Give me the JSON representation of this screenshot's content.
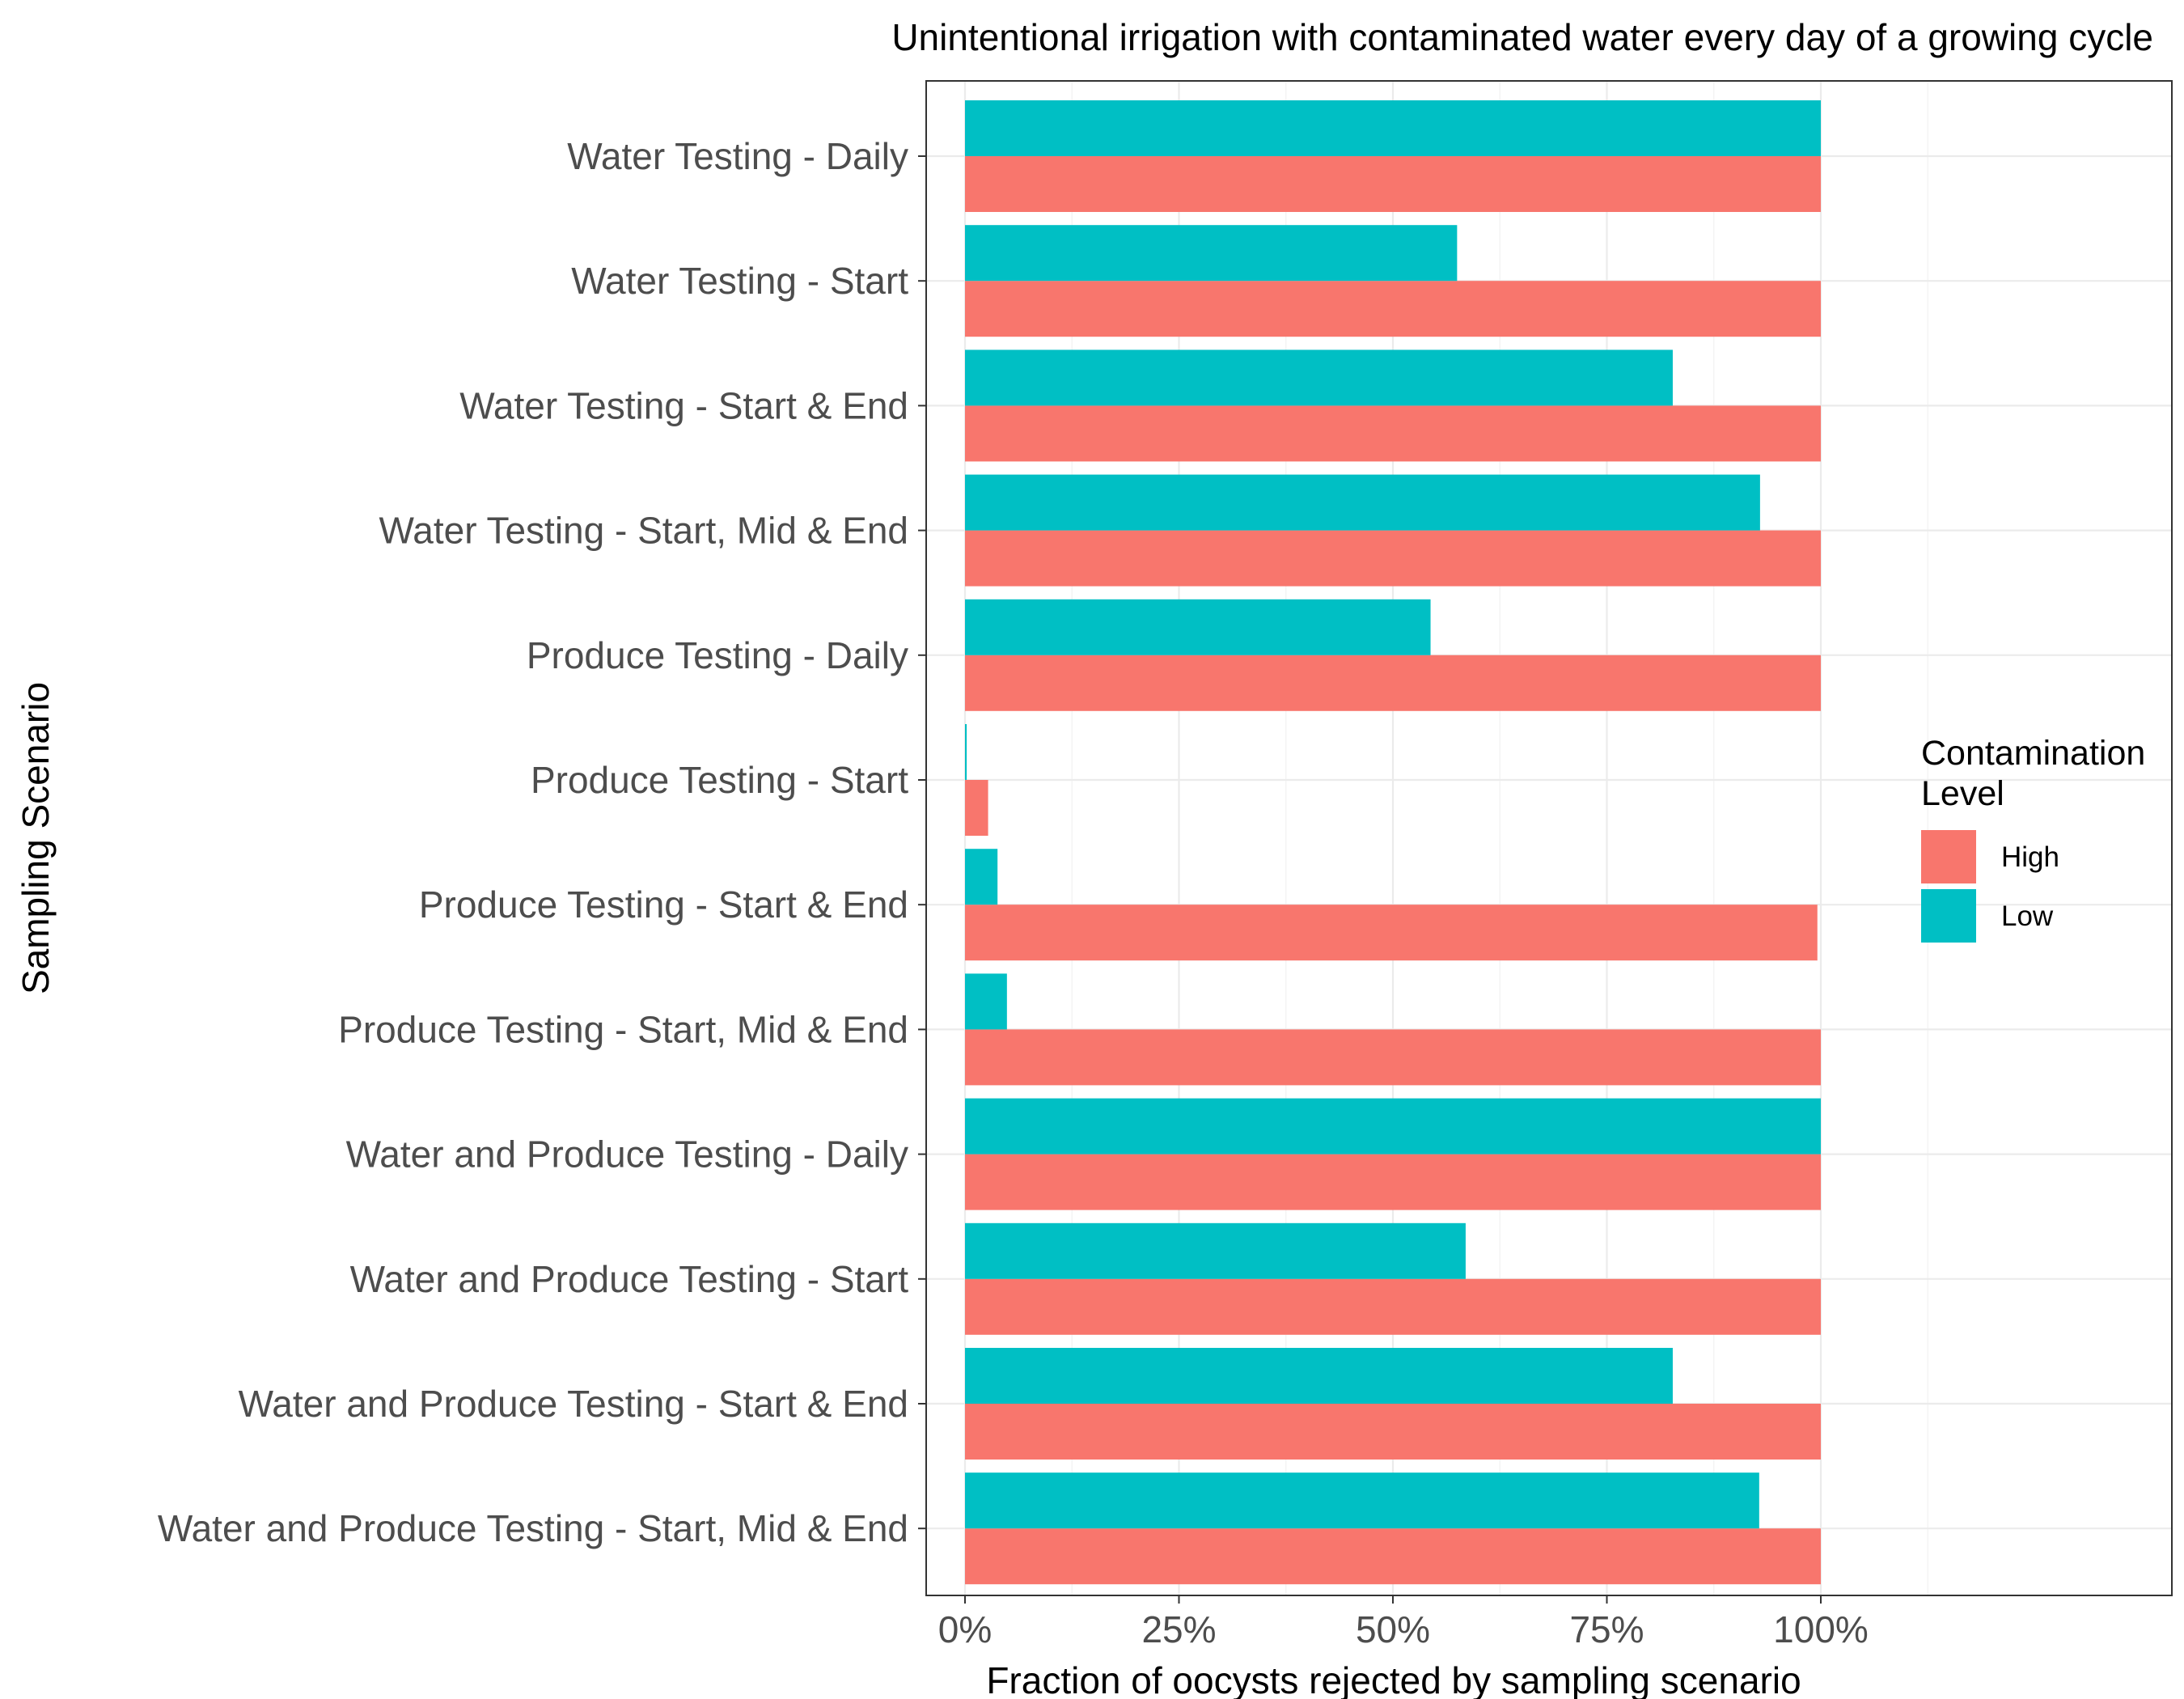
{
  "chart_data": {
    "type": "bar",
    "orientation": "horizontal",
    "title": "Unintentional irrigation with contaminated water every day of a growing cycle",
    "xlabel": "Fraction of oocysts rejected by sampling scenario",
    "ylabel": "Sampling Scenario",
    "xlim": [
      0,
      100
    ],
    "x_ticks": [
      "0%",
      "25%",
      "50%",
      "75%",
      "100%"
    ],
    "grid": true,
    "legend_position": "right",
    "legend_title": "Contamination Level",
    "categories": [
      "Water Testing - Daily",
      "Water Testing - Start",
      "Water Testing - Start & End",
      "Water Testing - Start, Mid & End",
      "Produce Testing - Daily",
      "Produce Testing - Start",
      "Produce Testing - Start & End",
      "Produce Testing - Start, Mid & End",
      "Water and Produce Testing - Daily",
      "Water and Produce Testing - Start",
      "Water and Produce Testing - Start & End",
      "Water and Produce Testing - Start, Mid & End"
    ],
    "series": [
      {
        "name": "High",
        "color": "#F8766D",
        "values": [
          100,
          100,
          100,
          100,
          100,
          2.7,
          99.6,
          100,
          100,
          100,
          100,
          100
        ]
      },
      {
        "name": "Low",
        "color": "#00BFC4",
        "values": [
          100,
          57.5,
          82.7,
          92.9,
          54.4,
          0.2,
          3.8,
          4.9,
          100,
          58.5,
          82.7,
          92.8
        ]
      }
    ]
  }
}
